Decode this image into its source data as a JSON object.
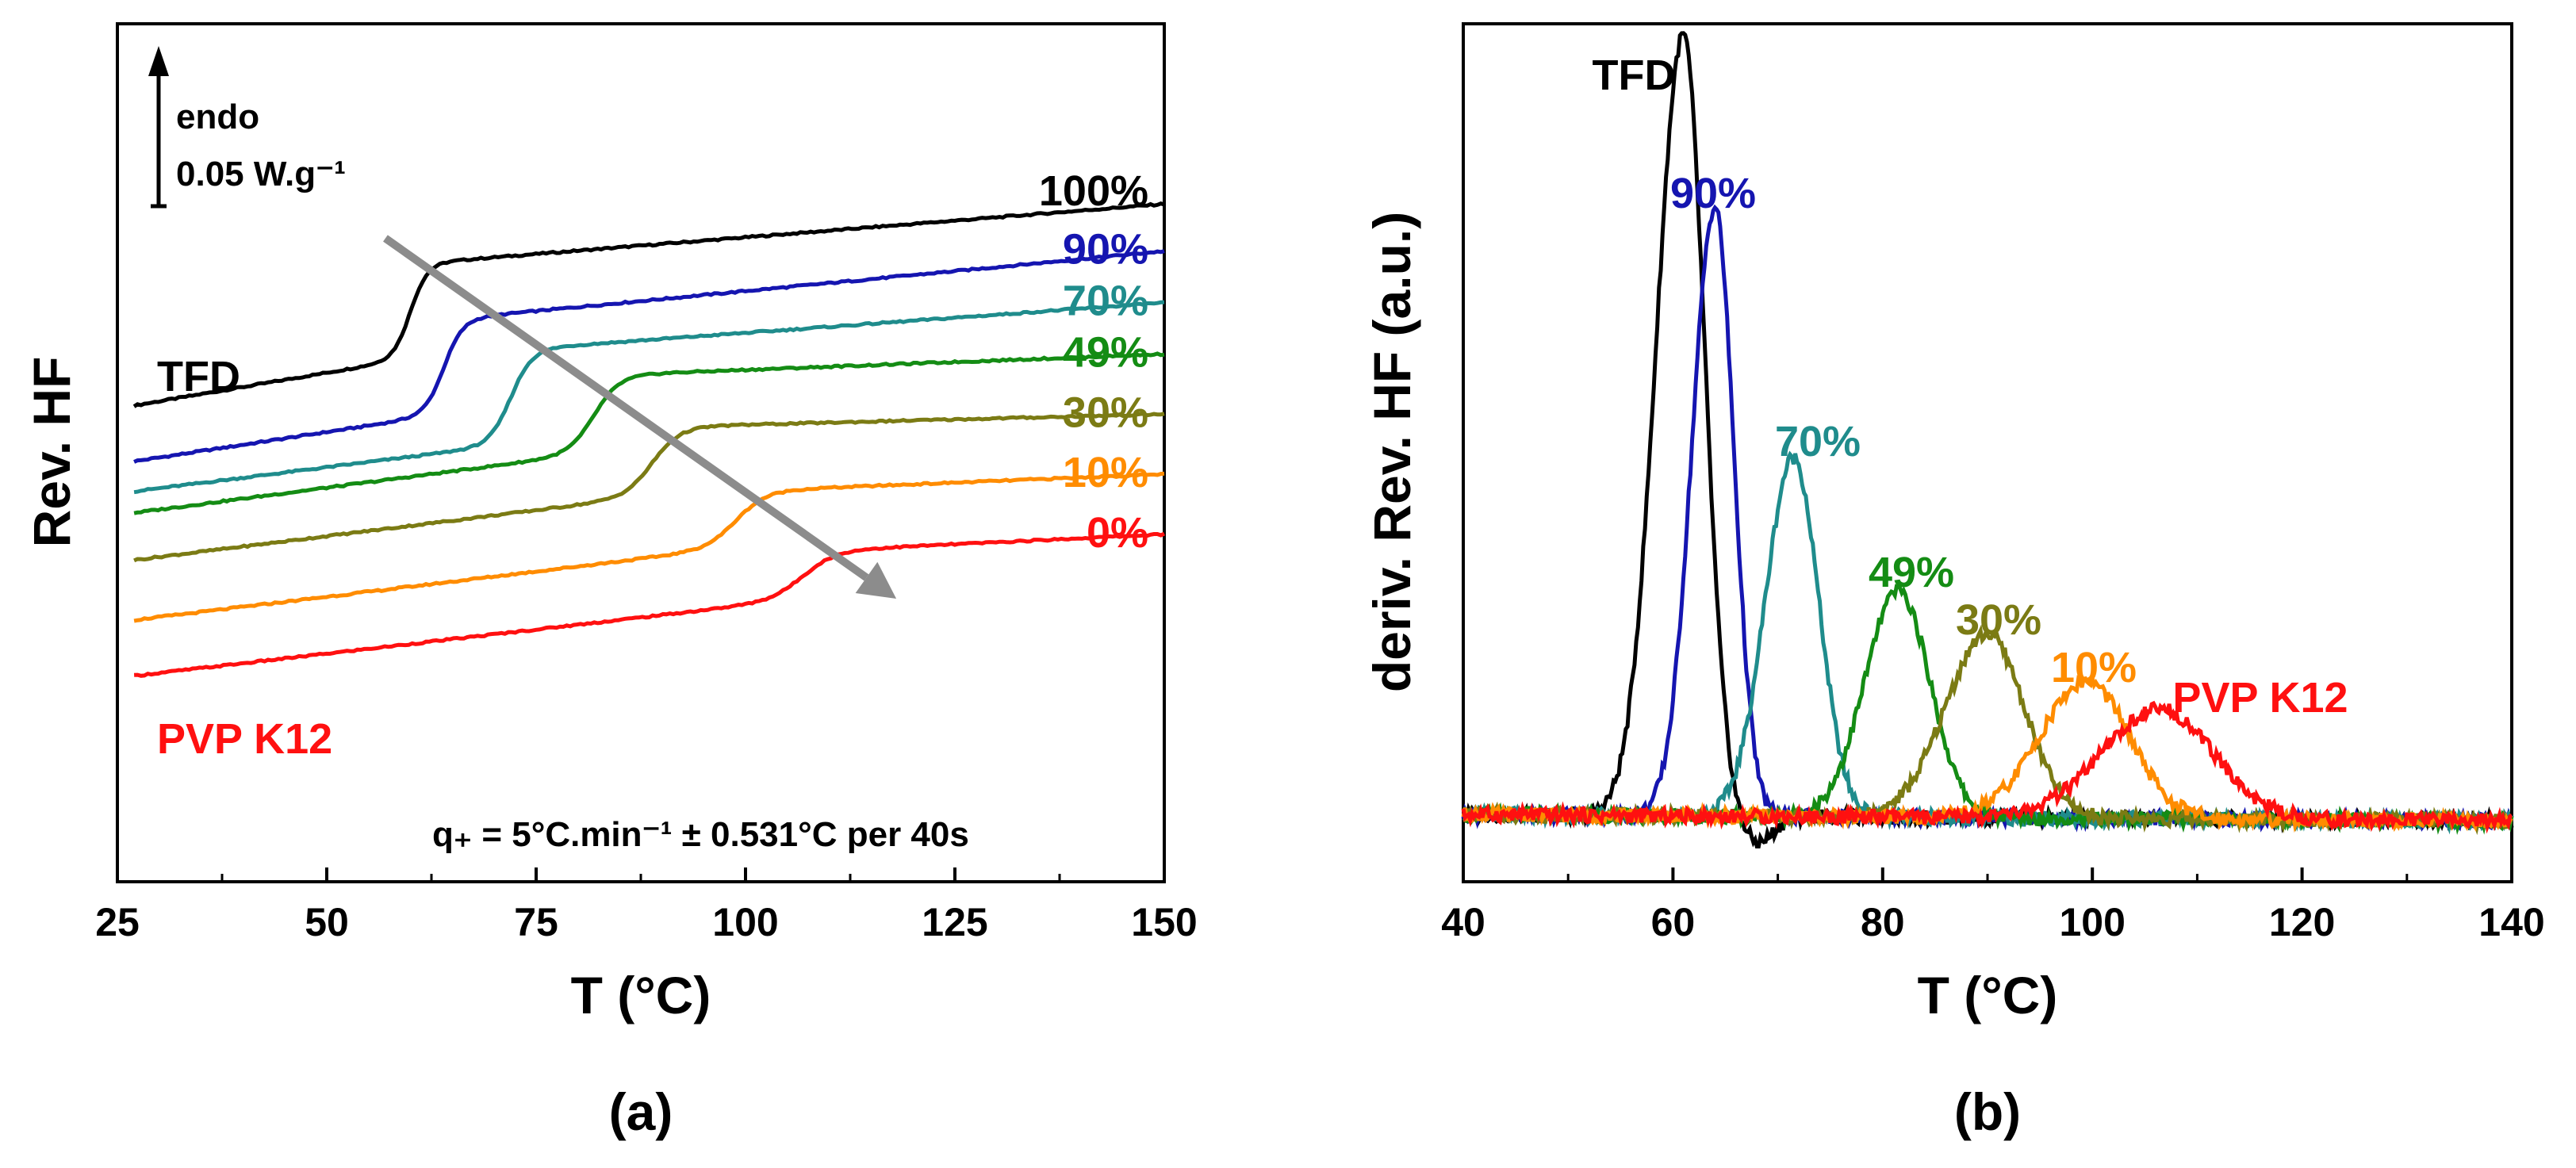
{
  "colors": {
    "TFD": "#000000",
    "90%": "#1515b0",
    "70%": "#1f8c8c",
    "49%": "#148c14",
    "30%": "#7b7b14",
    "10%": "#ff8c00",
    "PVP K12": "#ff1010",
    "arrow": "#8c8c8c"
  },
  "chart_data": [
    {
      "panel": "(a)",
      "type": "line",
      "xlabel": "T (°C)",
      "ylabel": "Rev. HF",
      "xlim": [
        25,
        150
      ],
      "xticks": [
        "25",
        "50",
        "75",
        "100",
        "125",
        "150"
      ],
      "y_units": "arbitrary, curves vertically offset",
      "scale_bar": {
        "direction": "endo",
        "label_top": "endo",
        "label_bottom": "0.05 W.g⁻¹"
      },
      "annotation": "q₊ = 5°C.min⁻¹ ± 0.531°C per 40s",
      "left_labels": {
        "top": "TFD",
        "bottom": "PVP K12"
      },
      "trend_arrow": {
        "from": {
          "x": 57,
          "yrel": 0.75
        },
        "to": {
          "x": 118,
          "yrel": 0.33
        }
      },
      "series": [
        {
          "name": "TFD",
          "label": "100%",
          "tg": 60,
          "width": 4,
          "y0": 0.555,
          "yg0": 0.61,
          "yg1": 0.72,
          "y1": 0.79
        },
        {
          "name": "90%",
          "label": "90%",
          "tg": 64,
          "width": 4.5,
          "y0": 0.49,
          "yg0": 0.545,
          "yg1": 0.655,
          "y1": 0.735
        },
        {
          "name": "70%",
          "label": "70%",
          "tg": 72,
          "width": 5,
          "y0": 0.455,
          "yg0": 0.51,
          "yg1": 0.62,
          "y1": 0.675
        },
        {
          "name": "49%",
          "label": "49%",
          "tg": 82,
          "width": 6,
          "y0": 0.43,
          "yg0": 0.5,
          "yg1": 0.59,
          "y1": 0.615
        },
        {
          "name": "30%",
          "label": "30%",
          "tg": 89,
          "width": 6.5,
          "y0": 0.375,
          "yg0": 0.45,
          "yg1": 0.53,
          "y1": 0.545
        },
        {
          "name": "10%",
          "label": "10%",
          "tg": 99,
          "width": 7,
          "y0": 0.305,
          "yg0": 0.39,
          "yg1": 0.455,
          "y1": 0.475
        },
        {
          "name": "PVP K12",
          "label": "0%",
          "tg": 107,
          "width": 7.5,
          "y0": 0.24,
          "yg0": 0.33,
          "yg1": 0.385,
          "y1": 0.405
        }
      ]
    },
    {
      "panel": "(b)",
      "type": "line",
      "xlabel": "T (°C)",
      "ylabel": "deriv. Rev. HF (a.u.)",
      "xlim": [
        40,
        140
      ],
      "xticks": [
        "40",
        "60",
        "80",
        "100",
        "120",
        "140"
      ],
      "y_units": "arbitrary",
      "series": [
        {
          "name": "TFD",
          "label": "TFD",
          "center": 61,
          "peak": 1.0,
          "sigma": 2.6,
          "sigma_right": 2.0,
          "dip": -0.035
        },
        {
          "name": "90%",
          "label": "90%",
          "center": 64,
          "peak": 0.78,
          "sigma": 2.2,
          "sigma_right": 1.8,
          "dip": 0
        },
        {
          "name": "70%",
          "label": "70%",
          "center": 71.5,
          "peak": 0.46,
          "sigma": 2.7,
          "sigma_right": 2.4,
          "dip": 0
        },
        {
          "name": "49%",
          "label": "49%",
          "center": 81.5,
          "peak": 0.29,
          "sigma": 3.2,
          "sigma_right": 3.0,
          "dip": 0
        },
        {
          "name": "30%",
          "label": "30%",
          "center": 90,
          "peak": 0.235,
          "sigma": 4.0,
          "sigma_right": 3.5,
          "dip": 0
        },
        {
          "name": "10%",
          "label": "10%",
          "center": 99.5,
          "peak": 0.175,
          "sigma": 4.5,
          "sigma_right": 4.0,
          "dip": 0
        },
        {
          "name": "PVP K12",
          "label": "PVP K12",
          "center": 106.5,
          "peak": 0.14,
          "sigma": 5.5,
          "sigma_right": 5.0,
          "dip": 0
        }
      ]
    }
  ]
}
